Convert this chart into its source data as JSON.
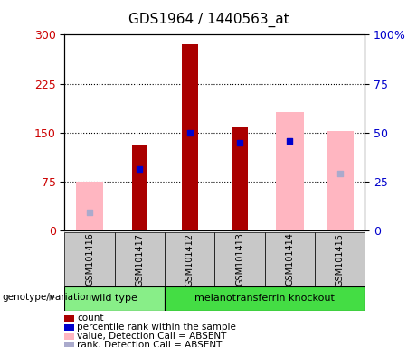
{
  "title": "GDS1964 / 1440563_at",
  "samples": [
    "GSM101416",
    "GSM101417",
    "GSM101412",
    "GSM101413",
    "GSM101414",
    "GSM101415"
  ],
  "count_values": [
    0,
    130,
    285,
    158,
    0,
    0
  ],
  "percentile_rank": [
    28,
    95,
    150,
    135,
    138,
    88
  ],
  "absent_value": [
    75,
    0,
    0,
    0,
    182,
    152
  ],
  "absent_rank": [
    28,
    0,
    0,
    0,
    0,
    88
  ],
  "has_count": [
    false,
    true,
    true,
    true,
    false,
    false
  ],
  "has_prank": [
    false,
    true,
    true,
    true,
    true,
    false
  ],
  "has_absent_val": [
    true,
    false,
    false,
    false,
    true,
    true
  ],
  "has_absent_rank": [
    true,
    false,
    false,
    false,
    false,
    true
  ],
  "left_yticks": [
    0,
    75,
    150,
    225,
    300
  ],
  "right_yticks": [
    0,
    25,
    50,
    75,
    100
  ],
  "left_color": "#CC0000",
  "right_color": "#0000CC",
  "count_color": "#AA0000",
  "prank_color": "#0000CC",
  "absent_val_color": "#FFB6C1",
  "absent_rank_color": "#AAAACC",
  "wt_color": "#88EE88",
  "ko_color": "#44DD44",
  "gray_color": "#C8C8C8",
  "legend_items": [
    {
      "label": "count",
      "color": "#AA0000"
    },
    {
      "label": "percentile rank within the sample",
      "color": "#0000CC"
    },
    {
      "label": "value, Detection Call = ABSENT",
      "color": "#FFB6C1"
    },
    {
      "label": "rank, Detection Call = ABSENT",
      "color": "#AAAACC"
    }
  ]
}
